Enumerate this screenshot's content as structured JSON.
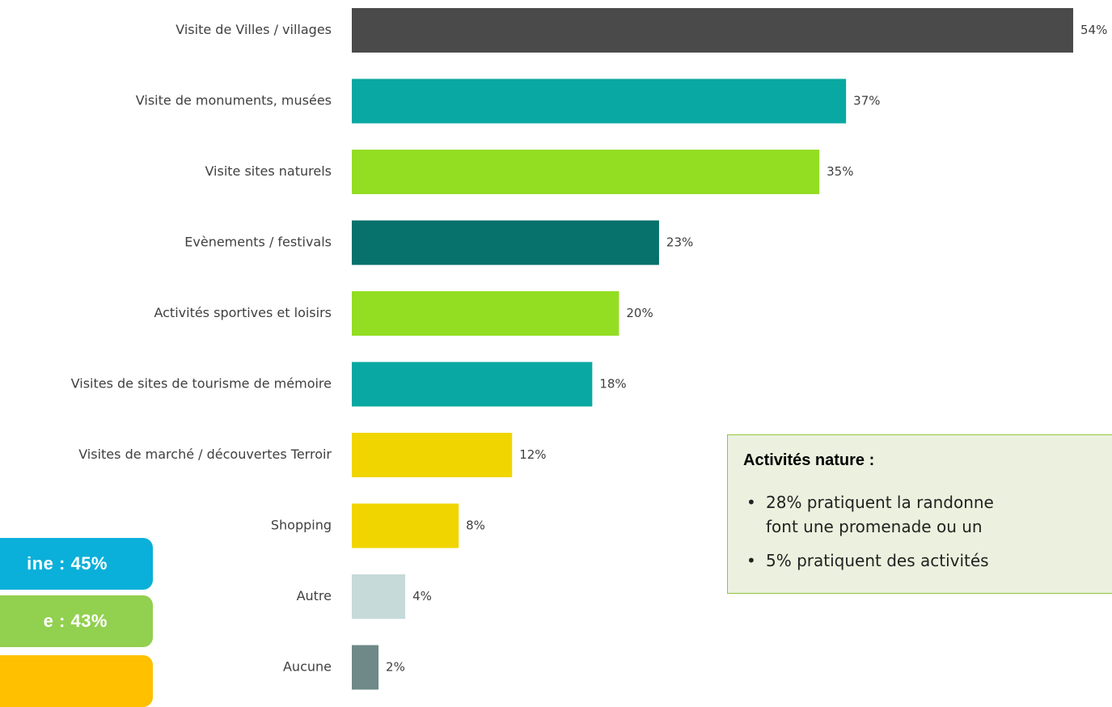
{
  "chart_data": {
    "type": "bar",
    "orientation": "horizontal",
    "title": "",
    "xlabel": "",
    "ylabel": "",
    "unit": "%",
    "xlim": [
      0,
      54
    ],
    "grid": false,
    "categories": [
      "Visite de Villes / villages",
      "Visite de monuments, musées",
      "Visite sites naturels",
      "Evènements / festivals",
      "Activités sportives et loisirs",
      "Visites de sites de tourisme de mémoire",
      "Visites de marché / découvertes Terroir",
      "Shopping",
      "Autre",
      "Aucune"
    ],
    "values": [
      54,
      37,
      35,
      23,
      20,
      18,
      12,
      8,
      4,
      2
    ],
    "value_labels": [
      "54%",
      "37%",
      "35%",
      "23%",
      "20%",
      "18%",
      "12%",
      "8%",
      "4%",
      "2%"
    ],
    "colors": [
      "#4a4a4a",
      "#0aa8a2",
      "#93dd23",
      "#07716b",
      "#93dd23",
      "#0aa8a2",
      "#f0d500",
      "#f0d500",
      "#c5dad9",
      "#6e8988"
    ]
  },
  "side_badges": [
    {
      "text": "ine : 45%",
      "color": "#0ab0d9"
    },
    {
      "text": "e : 43%",
      "color": "#92d050"
    },
    {
      "text": "",
      "color": "#ffc000"
    }
  ],
  "nature_box": {
    "title": "Activités nature :",
    "items": [
      {
        "line1": "28% pratiquent la randonne",
        "line2": "font une promenade ou un"
      },
      {
        "line1": "5% pratiquent des activités"
      }
    ],
    "bullet": "•",
    "background": "#ebf1de",
    "border": "#92c83e"
  }
}
